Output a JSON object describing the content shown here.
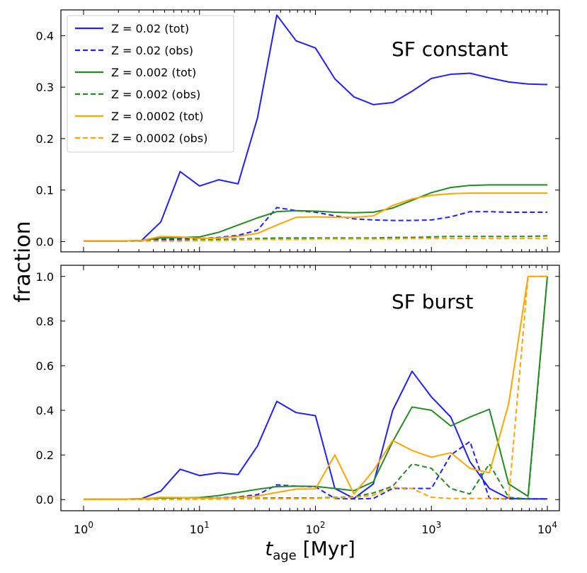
{
  "figure": {
    "ylabel": "fraction",
    "xlabel_main": "t",
    "xlabel_sub": "age",
    "xlabel_unit": " [Myr]"
  },
  "chart_data": [
    {
      "type": "line",
      "title": "SF constant",
      "xscale": "log",
      "xlim": [
        1,
        10000
      ],
      "ylim": [
        -0.02,
        0.45
      ],
      "yticks": [
        0.0,
        0.1,
        0.2,
        0.3,
        0.4
      ],
      "ytick_labels": [
        "0.0",
        "0.1",
        "0.2",
        "0.3",
        "0.4"
      ],
      "legend_position": "top-left",
      "x": [
        1,
        1.47,
        2.15,
        3.16,
        4.64,
        6.81,
        10,
        14.7,
        21.5,
        31.6,
        46.4,
        68.1,
        100,
        147,
        215,
        316,
        464,
        681,
        1000,
        1470,
        2150,
        3160,
        4640,
        6810,
        10000
      ],
      "series": [
        {
          "name": "Z = 0.02 (tot)",
          "color": "#1f1fff",
          "dash": "solid",
          "values": [
            0.001,
            0.001,
            0.001,
            0.002,
            0.038,
            0.136,
            0.108,
            0.12,
            0.112,
            0.24,
            0.44,
            0.39,
            0.376,
            0.316,
            0.281,
            0.266,
            0.27,
            0.292,
            0.317,
            0.325,
            0.327,
            0.318,
            0.31,
            0.306,
            0.305
          ]
        },
        {
          "name": "Z = 0.02 (obs)",
          "color": "#1f1fff",
          "dash": "dashed",
          "values": [
            0.001,
            0.001,
            0.001,
            0.001,
            0.004,
            0.005,
            0.006,
            0.008,
            0.012,
            0.022,
            0.066,
            0.06,
            0.057,
            0.05,
            0.044,
            0.042,
            0.041,
            0.041,
            0.042,
            0.048,
            0.058,
            0.058,
            0.057,
            0.057,
            0.057
          ]
        },
        {
          "name": "Z = 0.002 (tot)",
          "color": "#228B22",
          "dash": "solid",
          "values": [
            0.001,
            0.001,
            0.001,
            0.002,
            0.007,
            0.008,
            0.009,
            0.018,
            0.032,
            0.046,
            0.058,
            0.06,
            0.059,
            0.057,
            0.056,
            0.057,
            0.065,
            0.08,
            0.095,
            0.105,
            0.109,
            0.11,
            0.11,
            0.11,
            0.11
          ]
        },
        {
          "name": "Z = 0.002 (obs)",
          "color": "#228B22",
          "dash": "dashed",
          "values": [
            0.001,
            0.001,
            0.001,
            0.001,
            0.002,
            0.002,
            0.003,
            0.004,
            0.005,
            0.006,
            0.007,
            0.007,
            0.007,
            0.007,
            0.007,
            0.007,
            0.008,
            0.008,
            0.009,
            0.01,
            0.01,
            0.01,
            0.01,
            0.01,
            0.011
          ]
        },
        {
          "name": "Z = 0.0002 (tot)",
          "color": "#FFA500",
          "dash": "solid",
          "values": [
            0.001,
            0.001,
            0.001,
            0.002,
            0.01,
            0.009,
            0.006,
            0.007,
            0.01,
            0.016,
            0.032,
            0.047,
            0.048,
            0.047,
            0.047,
            0.05,
            0.07,
            0.083,
            0.09,
            0.093,
            0.094,
            0.094,
            0.094,
            0.094,
            0.094
          ]
        },
        {
          "name": "Z = 0.0002 (obs)",
          "color": "#FFA500",
          "dash": "dashed",
          "values": [
            0.001,
            0.001,
            0.001,
            0.001,
            0.001,
            0.001,
            0.002,
            0.002,
            0.003,
            0.004,
            0.004,
            0.004,
            0.005,
            0.005,
            0.005,
            0.005,
            0.005,
            0.006,
            0.006,
            0.006,
            0.006,
            0.006,
            0.006,
            0.006,
            0.006
          ]
        }
      ]
    },
    {
      "type": "line",
      "title": "SF burst",
      "xscale": "log",
      "xlim": [
        1,
        10000
      ],
      "ylim": [
        -0.05,
        1.05
      ],
      "yticks": [
        0.0,
        0.2,
        0.4,
        0.6,
        0.8,
        1.0
      ],
      "ytick_labels": [
        "0.0",
        "0.2",
        "0.4",
        "0.6",
        "0.8",
        "1.0"
      ],
      "xticks": [
        1,
        10,
        100,
        1000,
        10000
      ],
      "xtick_base": "10",
      "xtick_exps": [
        "0",
        "1",
        "2",
        "3",
        "4"
      ],
      "x": [
        1,
        1.47,
        2.15,
        3.16,
        4.64,
        6.81,
        10,
        14.7,
        21.5,
        31.6,
        46.4,
        68.1,
        100,
        147,
        215,
        316,
        464,
        681,
        1000,
        1470,
        2150,
        3160,
        4640,
        6810,
        10000
      ],
      "series": [
        {
          "name": "Z = 0.02 (tot)",
          "color": "#1f1fff",
          "dash": "solid",
          "values": [
            0.002,
            0.002,
            0.002,
            0.004,
            0.038,
            0.136,
            0.108,
            0.12,
            0.112,
            0.24,
            0.44,
            0.39,
            0.376,
            0.05,
            0.005,
            0.07,
            0.4,
            0.575,
            0.46,
            0.37,
            0.17,
            0.05,
            0.005,
            0.003,
            0.003
          ]
        },
        {
          "name": "Z = 0.02 (obs)",
          "color": "#1f1fff",
          "dash": "dashed",
          "values": [
            0.001,
            0.001,
            0.001,
            0.001,
            0.004,
            0.005,
            0.006,
            0.008,
            0.012,
            0.022,
            0.066,
            0.06,
            0.057,
            0.005,
            0.003,
            0.005,
            0.05,
            0.05,
            0.05,
            0.2,
            0.26,
            0.005,
            0.003,
            0.003,
            0.003
          ]
        },
        {
          "name": "Z = 0.002 (tot)",
          "color": "#228B22",
          "dash": "solid",
          "values": [
            0.002,
            0.002,
            0.002,
            0.003,
            0.007,
            0.008,
            0.009,
            0.018,
            0.032,
            0.046,
            0.058,
            0.06,
            0.059,
            0.05,
            0.04,
            0.08,
            0.26,
            0.415,
            0.4,
            0.33,
            0.37,
            0.405,
            0.07,
            0.015,
            1.0
          ]
        },
        {
          "name": "Z = 0.002 (obs)",
          "color": "#228B22",
          "dash": "dashed",
          "values": [
            0.001,
            0.001,
            0.001,
            0.001,
            0.002,
            0.002,
            0.003,
            0.004,
            0.005,
            0.006,
            0.007,
            0.007,
            0.007,
            0.01,
            0.012,
            0.03,
            0.06,
            0.16,
            0.14,
            0.05,
            0.025,
            0.16,
            0.01,
            0.003,
            1.0
          ]
        },
        {
          "name": "Z = 0.0002 (tot)",
          "color": "#FFA500",
          "dash": "solid",
          "values": [
            0.002,
            0.002,
            0.002,
            0.003,
            0.01,
            0.009,
            0.006,
            0.007,
            0.01,
            0.016,
            0.032,
            0.047,
            0.048,
            0.2,
            0.025,
            0.13,
            0.265,
            0.22,
            0.19,
            0.21,
            0.14,
            0.12,
            0.43,
            1.0,
            1.0
          ]
        },
        {
          "name": "Z = 0.0002 (obs)",
          "color": "#FFA500",
          "dash": "dashed",
          "values": [
            0.001,
            0.001,
            0.001,
            0.001,
            0.001,
            0.001,
            0.002,
            0.002,
            0.003,
            0.004,
            0.004,
            0.004,
            0.005,
            0.008,
            0.01,
            0.02,
            0.055,
            0.05,
            0.01,
            0.005,
            0.005,
            0.005,
            0.005,
            1.0,
            1.0
          ]
        }
      ]
    }
  ]
}
